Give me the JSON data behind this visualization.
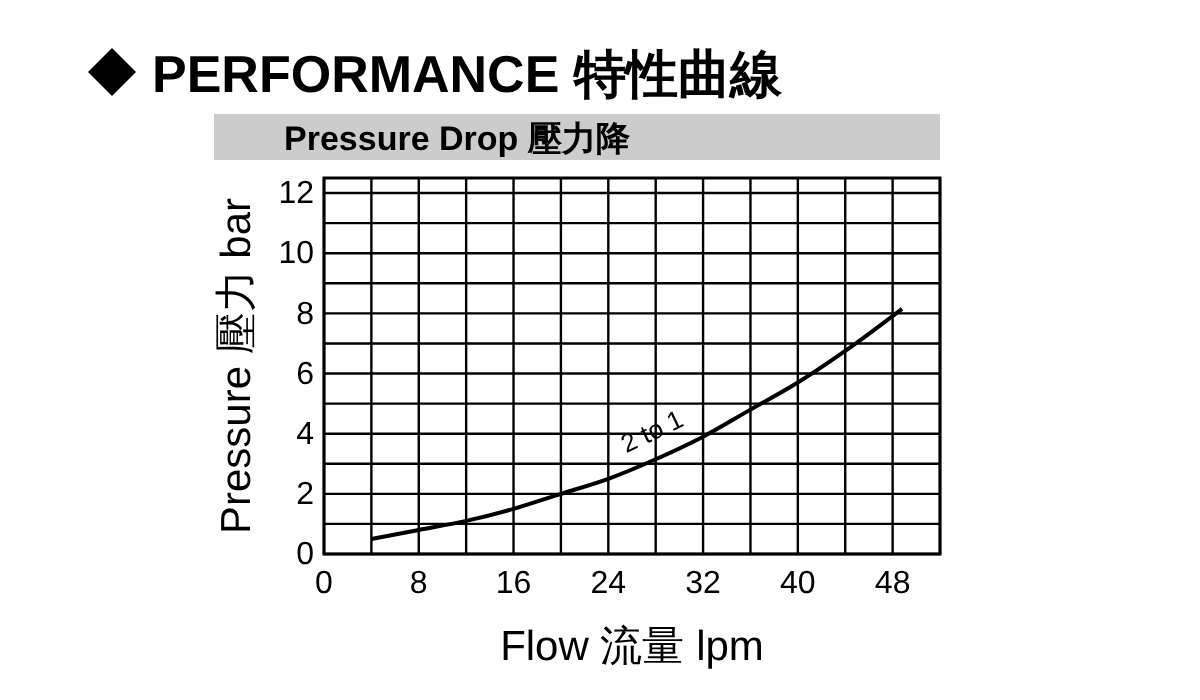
{
  "chart_data": {
    "type": "line",
    "title": "PERFORMANCE 特性曲線",
    "subtitle": "Pressure Drop 壓力降",
    "xlabel": "Flow 流量 lpm",
    "ylabel": "Pressure 壓力 bar",
    "x": [
      4,
      8,
      12,
      16,
      20,
      24,
      28,
      32,
      36,
      40,
      44,
      48.8
    ],
    "series": [
      {
        "name": "2 to 1",
        "color": "#000000",
        "values": [
          0.5,
          0.8,
          1.1,
          1.5,
          2.0,
          2.5,
          3.15,
          3.9,
          4.8,
          5.7,
          6.75,
          8.15
        ]
      }
    ],
    "xlim": [
      0,
      52
    ],
    "xticks": [
      0,
      {
        "value": 4,
        "label": null
      },
      8,
      {
        "value": 12,
        "label": null
      },
      16,
      {
        "value": 20,
        "label": null
      },
      24,
      {
        "value": 28,
        "label": null
      },
      32,
      {
        "value": 36,
        "label": null
      },
      40,
      {
        "value": 44,
        "label": null
      },
      48,
      {
        "value": 52,
        "label": null
      }
    ],
    "ylim": [
      0,
      12.5
    ],
    "yticks": [
      0,
      {
        "value": 1,
        "label": null
      },
      2,
      {
        "value": 3,
        "label": null
      },
      4,
      {
        "value": 5,
        "label": null
      },
      6,
      {
        "value": 7,
        "label": null
      },
      8,
      {
        "value": 9,
        "label": null
      },
      10,
      {
        "value": 11,
        "label": null
      },
      12
    ],
    "grid": true,
    "marker": "none",
    "line_style": "solid"
  }
}
